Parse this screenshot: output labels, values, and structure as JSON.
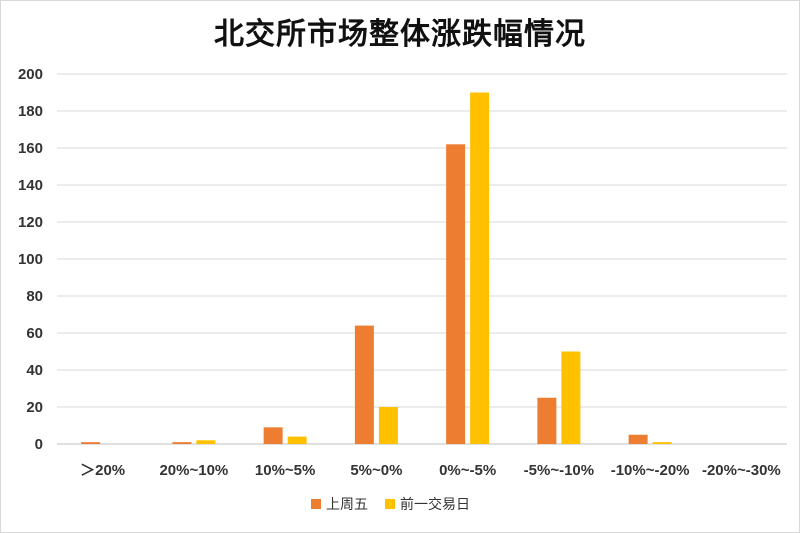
{
  "chart_data": {
    "type": "bar",
    "title": "北交所市场整体涨跌幅情况",
    "categories": [
      "＞20%",
      "20%~10%",
      "10%~5%",
      "5%~0%",
      "0%~-5%",
      "-5%~-10%",
      "-10%~-20%",
      "-20%~-30%"
    ],
    "series": [
      {
        "name": "上周五",
        "values": [
          1,
          1,
          9,
          64,
          162,
          25,
          5,
          0
        ],
        "color": "#ED7D31"
      },
      {
        "name": "前一交易日",
        "values": [
          0,
          2,
          4,
          20,
          190,
          50,
          1,
          0
        ],
        "color": "#FFC000"
      }
    ],
    "ylim": [
      0,
      200
    ],
    "yticks": [
      0,
      20,
      40,
      60,
      80,
      100,
      120,
      140,
      160,
      180,
      200
    ],
    "xlabel": "",
    "ylabel": "",
    "grid": true,
    "legend_position": "bottom"
  }
}
